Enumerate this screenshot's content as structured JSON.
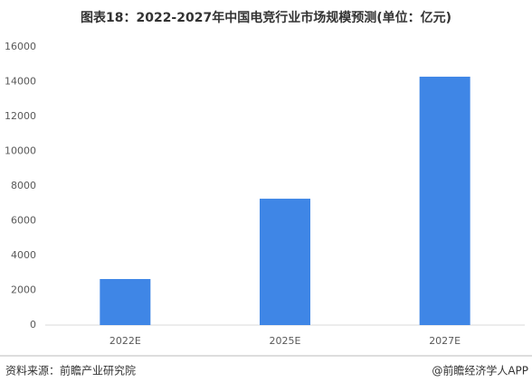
{
  "chart_data": {
    "type": "bar",
    "title": "图表18：2022-2027年中国电竞行业市场规模预测(单位：亿元)",
    "categories": [
      "2022E",
      "2025E",
      "2027E"
    ],
    "values": [
      2650,
      7270,
      14290
    ],
    "color": "#3f86e6",
    "ylim": [
      0,
      16000
    ],
    "yticks": [
      0,
      2000,
      4000,
      6000,
      8000,
      10000,
      12000,
      14000,
      16000
    ],
    "grid": false
  },
  "footer": {
    "source": "资料来源：前瞻产业研究院",
    "credit": "@前瞻经济学人APP"
  }
}
